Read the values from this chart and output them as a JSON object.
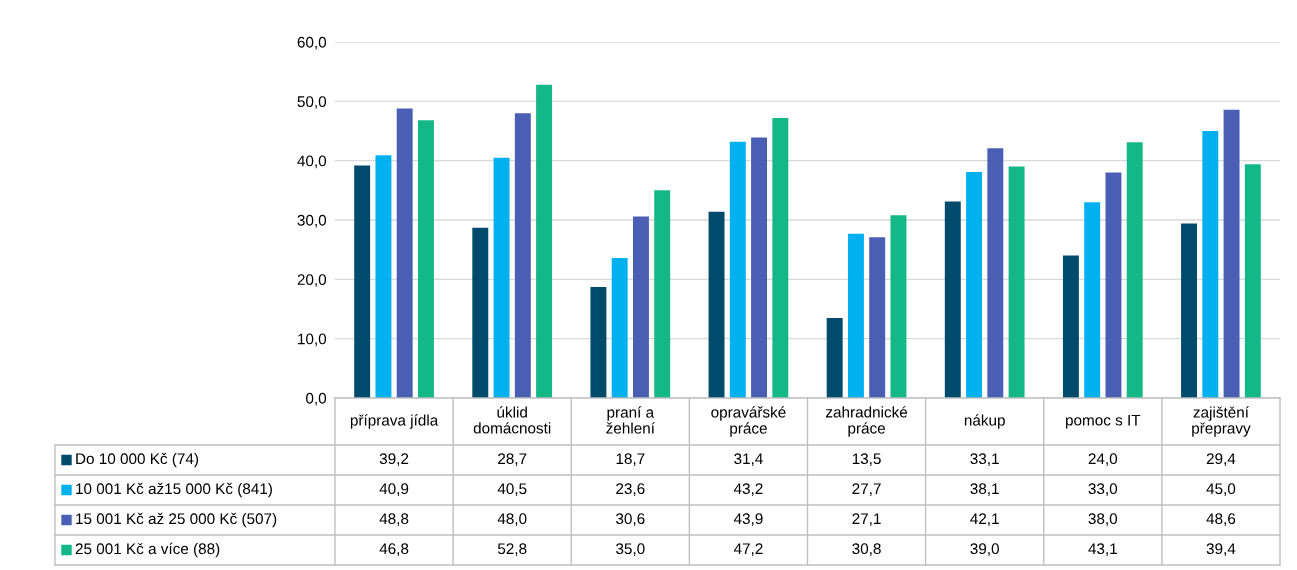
{
  "chart_data": {
    "type": "bar",
    "categories": [
      "příprava jídla",
      "úklid domácnosti",
      "praní a žehlení",
      "opravářské práce",
      "zahradnické práce",
      "nákup",
      "pomoc s IT",
      "zajištění přepravy"
    ],
    "series": [
      {
        "name": "Do 10 000 Kč (74)",
        "color": "#004b6b",
        "values": [
          39.2,
          28.7,
          18.7,
          31.4,
          13.5,
          33.1,
          24.0,
          29.4
        ],
        "value_labels": [
          "39,2",
          "28,7",
          "18,7",
          "31,4",
          "13,5",
          "33,1",
          "24,0",
          "29,4"
        ]
      },
      {
        "name": "10 001 Kč až15 000 Kč (841)",
        "color": "#00b0f0",
        "values": [
          40.9,
          40.5,
          23.6,
          43.2,
          27.7,
          38.1,
          33.0,
          45.0
        ],
        "value_labels": [
          "40,9",
          "40,5",
          "23,6",
          "43,2",
          "27,7",
          "38,1",
          "33,0",
          "45,0"
        ]
      },
      {
        "name": "15 001 Kč až 25 000 Kč (507)",
        "color": "#4a5fb4",
        "values": [
          48.8,
          48.0,
          30.6,
          43.9,
          27.1,
          42.1,
          38.0,
          48.6
        ],
        "value_labels": [
          "48,8",
          "48,0",
          "30,6",
          "43,9",
          "27,1",
          "42,1",
          "38,0",
          "48,6"
        ]
      },
      {
        "name": "25 001 Kč a více (88)",
        "color": "#14b887",
        "values": [
          46.8,
          52.8,
          35.0,
          47.2,
          30.8,
          39.0,
          43.1,
          39.4
        ],
        "value_labels": [
          "46,8",
          "52,8",
          "35,0",
          "47,2",
          "30,8",
          "39,0",
          "43,1",
          "39,4"
        ]
      }
    ],
    "ylim": [
      0,
      60
    ],
    "yticks": [
      {
        "value": 0,
        "label": "0,0"
      },
      {
        "value": 10,
        "label": "10,0"
      },
      {
        "value": 20,
        "label": "20,0"
      },
      {
        "value": 30,
        "label": "30,0"
      },
      {
        "value": 40,
        "label": "40,0"
      },
      {
        "value": 50,
        "label": "50,0"
      },
      {
        "value": 60,
        "label": "60,0"
      }
    ],
    "grid": "y",
    "legend": "bottom"
  }
}
